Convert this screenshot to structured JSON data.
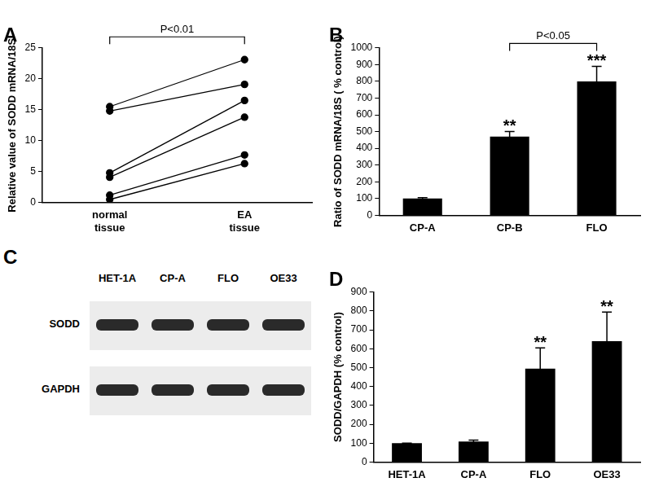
{
  "chart_data": [
    {
      "type": "line",
      "title": "A",
      "categories": [
        "normal tissue",
        "EA tissue"
      ],
      "series": [
        {
          "values": [
            15.5,
            23.1
          ]
        },
        {
          "values": [
            14.8,
            19.1
          ]
        },
        {
          "values": [
            4.8,
            16.5
          ]
        },
        {
          "values": [
            4.1,
            13.8
          ]
        },
        {
          "values": [
            1.2,
            7.7
          ]
        },
        {
          "values": [
            0.5,
            6.3
          ]
        }
      ],
      "color": "#000000",
      "marker": "circle",
      "ylim": [
        0,
        25
      ],
      "yticks": [
        0,
        5,
        10,
        15,
        20,
        25
      ],
      "y_label": "Relative value of SODD mRNA/18S",
      "grid": false,
      "annotations": [
        {
          "text": "P<0.01",
          "from": "normal tissue",
          "to": "EA tissue"
        }
      ]
    },
    {
      "type": "bar",
      "title": "B",
      "categories": [
        "CP-A",
        "CP-B",
        "FLO"
      ],
      "values": [
        100,
        470,
        800
      ],
      "errors": [
        5,
        30,
        90
      ],
      "color": "#000000",
      "ylim": [
        0,
        1000
      ],
      "yticks": [
        0,
        100,
        200,
        300,
        400,
        500,
        600,
        700,
        800,
        900,
        1000
      ],
      "y_label": "Ratio of SODD mRNA/18S ( % control)",
      "grid": false,
      "annotations": [
        {
          "text": "**",
          "category": "CP-B"
        },
        {
          "text": "***",
          "category": "FLO"
        },
        {
          "text": "P<0.05",
          "from": "CP-B",
          "to": "FLO"
        }
      ]
    },
    {
      "type": "bar",
      "title": "D",
      "categories": [
        "HET-1A",
        "CP-A",
        "FLO",
        "OE33"
      ],
      "values": [
        100,
        108,
        495,
        640
      ],
      "errors": [
        0,
        8,
        110,
        155
      ],
      "color": "#000000",
      "ylim": [
        0,
        900
      ],
      "yticks": [
        0,
        100,
        200,
        300,
        400,
        500,
        600,
        700,
        800,
        900
      ],
      "y_label": "SODD/GAPDH (% control)",
      "grid": false,
      "annotations": [
        {
          "text": "**",
          "category": "FLO"
        },
        {
          "text": "**",
          "category": "OE33"
        }
      ]
    }
  ],
  "blot": {
    "title": "C",
    "lanes": [
      "HET-1A",
      "CP-A",
      "FLO",
      "OE33"
    ],
    "rows": [
      "SODD",
      "GAPDH"
    ]
  }
}
